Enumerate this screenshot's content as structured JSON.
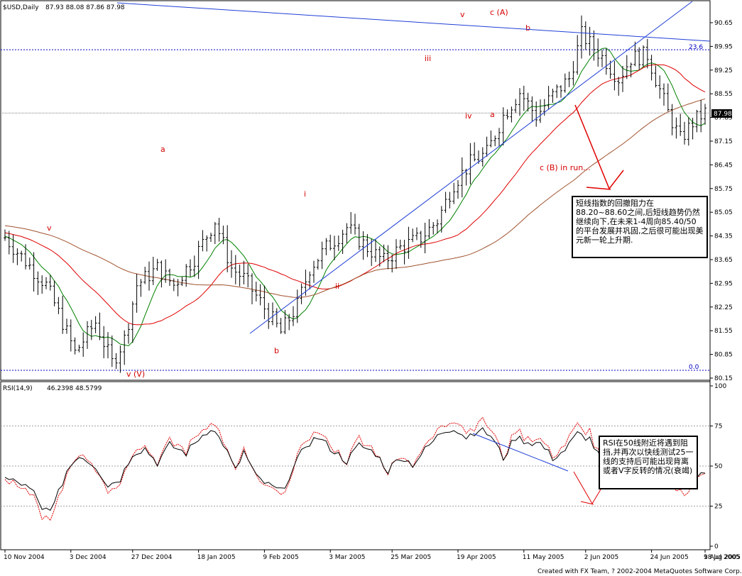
{
  "header": {
    "symbol": "$USD,Daily",
    "ohlc": "87.93 88.08 87.86 87.98"
  },
  "footer": {
    "credit": "Created with FX Team, ? 2002-2004 MetaQuotes Software Corp."
  },
  "chart_data": [
    {
      "type": "candlestick",
      "name": "price",
      "ylim": [
        80.15,
        91.0
      ],
      "yticks": [
        "90.65",
        "89.95",
        "89.25",
        "88.55",
        "87.85",
        "87.15",
        "86.45",
        "85.75",
        "85.05",
        "84.35",
        "83.65",
        "82.95",
        "82.25",
        "81.55",
        "80.85",
        "80.15"
      ],
      "xticks": [
        "10 Nov 2004",
        "3 Dec 2004",
        "27 Dec 2004",
        "18 Jan 2005",
        "9 Feb 2005",
        "3 Mar 2005",
        "25 Mar 2005",
        "19 Apr 2005",
        "11 May 2005",
        "2 Jun 2005",
        "24 Jun 2005",
        "18 Jul 2005",
        "9 Aug 2005"
      ],
      "last_price": "87.98",
      "fib_levels": [
        {
          "label": "23.6",
          "value": 89.85
        },
        {
          "label": "0.0",
          "value": 80.38
        }
      ],
      "wave_labels": [
        "v",
        "c (A)",
        "b",
        "iii",
        "iv",
        "a",
        "c (B) in run...",
        "a",
        "i",
        "v",
        "ii",
        "b",
        "v (V)"
      ],
      "close_anchors": [
        [
          0,
          84.3
        ],
        [
          10,
          82.9
        ],
        [
          14,
          81.8
        ],
        [
          17,
          80.9
        ],
        [
          22,
          81.8
        ],
        [
          26,
          80.6
        ],
        [
          29,
          81.3
        ],
        [
          32,
          82.9
        ],
        [
          37,
          83.4
        ],
        [
          41,
          82.9
        ],
        [
          46,
          83.7
        ],
        [
          51,
          84.8
        ],
        [
          55,
          83.4
        ],
        [
          58,
          83.1
        ],
        [
          62,
          82.4
        ],
        [
          67,
          81.5
        ],
        [
          71,
          82.3
        ],
        [
          74,
          83.4
        ],
        [
          78,
          84.0
        ],
        [
          83,
          84.6
        ],
        [
          88,
          84.0
        ],
        [
          92,
          83.6
        ],
        [
          96,
          84.0
        ],
        [
          101,
          84.3
        ],
        [
          105,
          84.8
        ],
        [
          109,
          85.9
        ],
        [
          113,
          86.5
        ],
        [
          117,
          86.8
        ],
        [
          121,
          87.9
        ],
        [
          125,
          88.6
        ],
        [
          129,
          87.9
        ],
        [
          133,
          88.5
        ],
        [
          137,
          89.0
        ],
        [
          140,
          90.3
        ],
        [
          143,
          89.9
        ],
        [
          146,
          89.5
        ],
        [
          149,
          89.0
        ],
        [
          152,
          89.6
        ],
        [
          156,
          89.7
        ],
        [
          158,
          89.0
        ],
        [
          161,
          88.0
        ],
        [
          164,
          87.2
        ],
        [
          167,
          87.7
        ],
        [
          170,
          88.0
        ]
      ],
      "series": [
        {
          "name": "SMA fast",
          "color": "#008000",
          "period": 8
        },
        {
          "name": "SMA mid",
          "color": "#e00000",
          "period": 25
        },
        {
          "name": "SMA slow",
          "color": "#a0522d",
          "period": 60
        }
      ]
    },
    {
      "type": "line",
      "name": "rsi",
      "header": "RSI(14,9)",
      "values_text": "46.2398  48.5799",
      "ylim": [
        0,
        100
      ],
      "yticks": [
        "100",
        "75",
        "50",
        "25",
        "0"
      ],
      "levels": [
        75,
        50,
        25
      ],
      "rsi_anchors": [
        [
          0,
          42
        ],
        [
          4,
          39
        ],
        [
          7,
          33
        ],
        [
          9,
          22
        ],
        [
          12,
          26
        ],
        [
          15,
          47
        ],
        [
          18,
          57
        ],
        [
          22,
          50
        ],
        [
          25,
          38
        ],
        [
          28,
          42
        ],
        [
          31,
          58
        ],
        [
          34,
          61
        ],
        [
          37,
          52
        ],
        [
          40,
          63
        ],
        [
          44,
          58
        ],
        [
          47,
          67
        ],
        [
          50,
          74
        ],
        [
          53,
          64
        ],
        [
          56,
          47
        ],
        [
          58,
          59
        ],
        [
          61,
          43
        ],
        [
          64,
          38
        ],
        [
          67,
          34
        ],
        [
          70,
          48
        ],
        [
          73,
          63
        ],
        [
          76,
          68
        ],
        [
          80,
          59
        ],
        [
          83,
          53
        ],
        [
          86,
          63
        ],
        [
          90,
          58
        ],
        [
          93,
          47
        ],
        [
          96,
          56
        ],
        [
          99,
          51
        ],
        [
          102,
          60
        ],
        [
          106,
          71
        ],
        [
          109,
          74
        ],
        [
          112,
          68
        ],
        [
          115,
          73
        ],
        [
          118,
          69
        ],
        [
          121,
          55
        ],
        [
          124,
          68
        ],
        [
          127,
          65
        ],
        [
          130,
          64
        ],
        [
          133,
          55
        ],
        [
          136,
          60
        ],
        [
          139,
          70
        ],
        [
          142,
          67
        ],
        [
          145,
          52
        ],
        [
          148,
          47
        ],
        [
          151,
          53
        ],
        [
          154,
          57
        ],
        [
          157,
          54
        ],
        [
          160,
          49
        ],
        [
          163,
          37
        ],
        [
          165,
          35
        ],
        [
          167,
          41
        ],
        [
          170,
          46
        ]
      ]
    }
  ],
  "annotations": {
    "note1": "短线指数的回撤阻力在88.20~88.60之间,后短线趋势仍然继续向下,在未来1-4周向85.40/50的平台发展并巩固,之后很可能出现美元新一轮上升期.",
    "note2": "RSI在50线附近将遇到阻挡,并再次以快线测试25一线的支持后可能出现背离或者V字反转的情况(衰竭)"
  }
}
